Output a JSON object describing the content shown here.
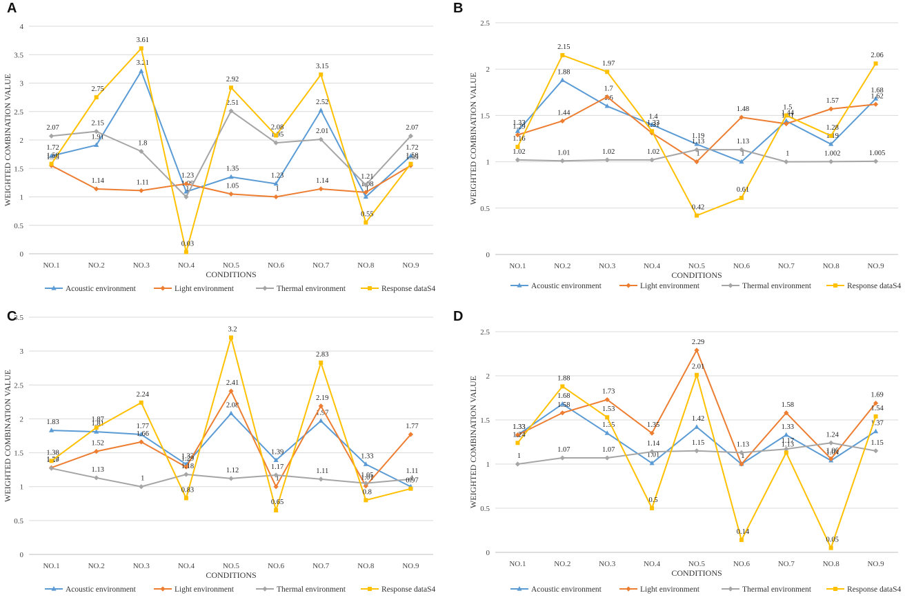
{
  "colors": {
    "acoustic": "#5B9BD5",
    "light": "#ED7D31",
    "thermal": "#A5A5A5",
    "response": "#FFC000",
    "grid": "#d9d9d9"
  },
  "chart_data": [
    {
      "panel": "A",
      "type": "line",
      "xlabel": "CONDITIONS",
      "ylabel": "WEIGHTED COMBINATION VALUE",
      "ylim": [
        0,
        4
      ],
      "yticks": [
        0,
        0.5,
        1,
        1.5,
        2,
        2.5,
        3,
        3.5,
        4
      ],
      "ytick_labels": [
        "0",
        "0.5",
        "1",
        "1.5",
        "2",
        "2.5",
        "3",
        "3.5",
        "4"
      ],
      "categories": [
        "NO.1",
        "NO.2",
        "NO.3",
        "NO.4",
        "NO.5",
        "NO.6",
        "NO.7",
        "NO.8",
        "NO.9"
      ],
      "grid": true,
      "legend": "bottom",
      "series": [
        {
          "name": "Acoustic environment",
          "values": [
            1.72,
            1.91,
            3.21,
            1.09,
            1.35,
            1.23,
            2.52,
            1.0,
            1.72
          ],
          "labels": [
            "1.72",
            "1.91",
            "3.21",
            "1.09",
            "1.35",
            "1.23",
            "2.52",
            "1",
            "1.72"
          ]
        },
        {
          "name": "Light environment",
          "values": [
            1.55,
            1.14,
            1.11,
            1.23,
            1.05,
            1.0,
            1.14,
            1.08,
            1.55
          ],
          "labels": [
            "1.55",
            "1.14",
            "1.11",
            "1.23",
            "1.05",
            "1",
            "1.14",
            "1.08",
            "1.55"
          ]
        },
        {
          "name": "Thermal environment",
          "values": [
            2.07,
            2.15,
            1.8,
            1.0,
            2.51,
            1.95,
            2.01,
            1.21,
            2.07
          ],
          "labels": [
            "2.07",
            "2.15",
            "1.8",
            "1",
            "2.51",
            "1.95",
            "2.01",
            "1.21",
            "2.07"
          ]
        },
        {
          "name": "Response dataS4",
          "values": [
            1.58,
            2.75,
            3.61,
            0.03,
            2.92,
            2.08,
            3.15,
            0.55,
            1.58
          ],
          "labels": [
            "1.58",
            "2.75",
            "3.61",
            "0.03",
            "2.92",
            "2.08",
            "3.15",
            "0.55",
            "1.58"
          ]
        }
      ]
    },
    {
      "panel": "B",
      "type": "line",
      "xlabel": "CONDITIONS",
      "ylabel": "WEIGHTED COMBINATION VALUE",
      "ylim": [
        0,
        2.5
      ],
      "yticks": [
        0,
        0.5,
        1,
        1.5,
        2,
        2.5
      ],
      "ytick_labels": [
        "0",
        "0.5",
        "1",
        "1.5",
        "2",
        "2.5"
      ],
      "categories": [
        "NO.1",
        "NO.2",
        "NO.3",
        "NO.4",
        "NO.5",
        "NO.6",
        "NO.7",
        "NO.8",
        "NO.9"
      ],
      "grid": true,
      "legend": "bottom",
      "series": [
        {
          "name": "Acoustic environment",
          "values": [
            1.33,
            1.88,
            1.6,
            1.4,
            1.19,
            1.0,
            1.44,
            1.19,
            1.68
          ],
          "labels": [
            "1.33",
            "1.88",
            "1.6",
            "1.4",
            "1.19",
            "1",
            "1.44",
            "1.19",
            "1.68"
          ]
        },
        {
          "name": "Light environment",
          "values": [
            1.29,
            1.44,
            1.7,
            1.31,
            1.0,
            1.48,
            1.41,
            1.57,
            1.62
          ],
          "labels": [
            "1.29",
            "1.44",
            "1.7",
            "1.31",
            "1",
            "1.48",
            "1.41",
            "1.57",
            "1.62"
          ]
        },
        {
          "name": "Thermal environment",
          "values": [
            1.02,
            1.01,
            1.02,
            1.02,
            1.13,
            1.13,
            1.0,
            1.002,
            1.005
          ],
          "labels": [
            "1.02",
            "1.01",
            "1.02",
            "1.02",
            "1.13",
            "1.13",
            "1",
            "1.002",
            "1.005"
          ]
        },
        {
          "name": "Response dataS4",
          "values": [
            1.16,
            2.15,
            1.97,
            1.33,
            0.42,
            0.61,
            1.5,
            1.28,
            2.06
          ],
          "labels": [
            "1.16",
            "2.15",
            "1.97",
            "1.33",
            "0.42",
            "0.61",
            "1.5",
            "1.28",
            "2.06"
          ]
        }
      ]
    },
    {
      "panel": "C",
      "type": "line",
      "xlabel": "CONDITIONS",
      "ylabel": "WEIGHTED COMBINATION VALUE",
      "ylim": [
        0,
        3.5
      ],
      "yticks": [
        0,
        0.5,
        1,
        1.5,
        2,
        2.5,
        3,
        3.5
      ],
      "ytick_labels": [
        "0",
        "0.5",
        "1",
        "1.5",
        "2",
        "2.5",
        "3",
        "3.5"
      ],
      "categories": [
        "NO.1",
        "NO.2",
        "NO.3",
        "NO.4",
        "NO.5",
        "NO.6",
        "NO.7",
        "NO.8",
        "NO.9"
      ],
      "grid": true,
      "legend": "bottom",
      "series": [
        {
          "name": "Acoustic environment",
          "values": [
            1.83,
            1.81,
            1.77,
            1.33,
            2.08,
            1.39,
            1.97,
            1.33,
            1.0
          ],
          "labels": [
            "1.83",
            "1.81",
            "1.77",
            "1.33",
            "2.08",
            "1.39",
            "1.97",
            "1.33",
            "1"
          ]
        },
        {
          "name": "Light environment",
          "values": [
            1.28,
            1.52,
            1.66,
            1.29,
            2.41,
            1.0,
            2.19,
            1.01,
            1.77
          ],
          "labels": [
            "1.28",
            "1.52",
            "1.66",
            "1.29",
            "2.41",
            "1",
            "2.19",
            "1.01",
            "1.77"
          ]
        },
        {
          "name": "Thermal environment",
          "values": [
            1.27,
            1.13,
            1.0,
            1.18,
            1.12,
            1.17,
            1.11,
            1.05,
            1.11
          ],
          "labels": [
            "1.27",
            "1.13",
            "1",
            "1.18",
            "1.12",
            "1.17",
            "1.11",
            "1.05",
            "1.11"
          ]
        },
        {
          "name": "Response dataS4",
          "values": [
            1.38,
            1.87,
            2.24,
            0.83,
            3.2,
            0.65,
            2.83,
            0.8,
            0.97
          ],
          "labels": [
            "1.38",
            "1.87",
            "2.24",
            "0.83",
            "3.2",
            "0.65",
            "2.83",
            "0.8",
            "0.97"
          ]
        }
      ]
    },
    {
      "panel": "D",
      "type": "line",
      "xlabel": "CONDITIONS",
      "ylabel": "WEIGHTED COMBINATION VALUE",
      "ylim": [
        0,
        2.5
      ],
      "yticks": [
        0,
        0.5,
        1,
        1.5,
        2,
        2.5
      ],
      "ytick_labels": [
        "0",
        "0.5",
        "1",
        "1.5",
        "2",
        "2.5"
      ],
      "categories": [
        "NO.1",
        "NO.2",
        "NO.3",
        "NO.4",
        "NO.5",
        "NO.6",
        "NO.7",
        "NO.8",
        "NO.9"
      ],
      "grid": true,
      "legend": "bottom",
      "series": [
        {
          "name": "Acoustic environment",
          "values": [
            1.33,
            1.68,
            1.35,
            1.01,
            1.42,
            1.0,
            1.33,
            1.04,
            1.37
          ],
          "labels": [
            "1.33",
            "1.68",
            "1.35",
            "1.01",
            "1.42",
            "1",
            "1.33",
            "1.04",
            "1.37"
          ]
        },
        {
          "name": "Light environment",
          "values": [
            1.33,
            1.58,
            1.73,
            1.35,
            2.29,
            1.0,
            1.58,
            1.06,
            1.69
          ],
          "labels": [
            "1.33",
            "1.58",
            "1.73",
            "1.35",
            "2.29",
            "1",
            "1.58",
            "1.06",
            "1.69"
          ]
        },
        {
          "name": "Thermal environment",
          "values": [
            1.0,
            1.07,
            1.07,
            1.14,
            1.15,
            1.13,
            1.17,
            1.24,
            1.15
          ],
          "labels": [
            "1",
            "1.07",
            "1.07",
            "1.14",
            "1.15",
            "1.13",
            "1.17",
            "1.24",
            "1.15"
          ]
        },
        {
          "name": "Response dataS4",
          "values": [
            1.24,
            1.88,
            1.53,
            0.5,
            2.01,
            0.14,
            1.13,
            0.05,
            1.54
          ],
          "labels": [
            "1.24",
            "1.88",
            "1.53",
            "0.5",
            "2.01",
            "0.14",
            "1.13",
            "0.05",
            "1.54"
          ]
        }
      ]
    }
  ]
}
